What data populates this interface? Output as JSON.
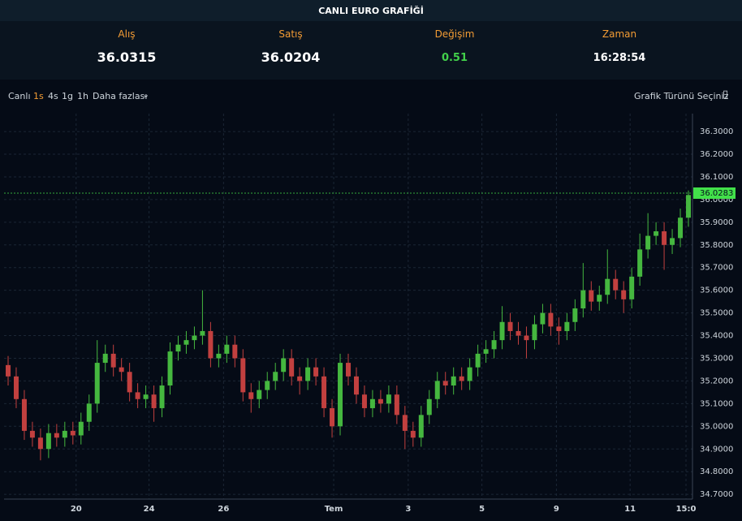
{
  "header": {
    "title": "CANLI EURO GRAFİĞİ",
    "stats": [
      {
        "label": "Alış",
        "value": "36.0315"
      },
      {
        "label": "Satış",
        "value": "36.0204"
      },
      {
        "label": "Değişim",
        "value": "0.51"
      },
      {
        "label": "Zaman",
        "value": "16:28:54"
      }
    ]
  },
  "toolbar": {
    "live": "Canlı",
    "intervals": [
      "1s",
      "4s",
      "1g",
      "1h"
    ],
    "more": "Daha fazlası",
    "chart_type": "Grafik Türünü Seçiniz"
  },
  "chart_data": {
    "type": "candlestick",
    "up_color": "#45b73f",
    "down_color": "#c2403f",
    "grid": true,
    "last_price": 36.0283,
    "last_price_color": "#42e04a",
    "open": [
      35.27,
      35.22,
      35.12,
      34.98,
      34.95,
      34.9,
      34.97,
      34.95,
      34.98,
      34.96,
      35.02,
      35.1,
      35.28,
      35.32,
      35.26,
      35.24,
      35.15,
      35.12,
      35.14,
      35.08,
      35.18,
      35.33,
      35.36,
      35.38,
      35.4,
      35.42,
      35.3,
      35.32,
      35.36,
      35.3,
      35.15,
      35.12,
      35.16,
      35.2,
      35.24,
      35.3,
      35.22,
      35.2,
      35.26,
      35.22,
      35.08,
      35.0,
      35.28,
      35.22,
      35.14,
      35.08,
      35.12,
      35.1,
      35.14,
      35.05,
      34.98,
      34.95,
      35.05,
      35.12,
      35.2,
      35.18,
      35.22,
      35.2,
      35.26,
      35.32,
      35.34,
      35.38,
      35.46,
      35.42,
      35.4,
      35.38,
      35.45,
      35.5,
      35.44,
      35.42,
      35.46,
      35.52,
      35.6,
      35.55,
      35.58,
      35.65,
      35.6,
      35.56,
      35.66,
      35.78,
      35.84,
      35.86,
      35.8,
      35.83,
      35.92
    ],
    "high": [
      35.31,
      35.26,
      35.16,
      35.02,
      34.99,
      35.01,
      35.01,
      35.02,
      35.02,
      35.06,
      35.14,
      35.38,
      35.36,
      35.36,
      35.3,
      35.28,
      35.19,
      35.18,
      35.18,
      35.22,
      35.37,
      35.4,
      35.42,
      35.44,
      35.6,
      35.46,
      35.36,
      35.4,
      35.4,
      35.34,
      35.19,
      35.2,
      35.24,
      35.28,
      35.34,
      35.34,
      35.26,
      35.3,
      35.3,
      35.26,
      35.12,
      35.32,
      35.32,
      35.26,
      35.18,
      35.16,
      35.16,
      35.18,
      35.18,
      35.09,
      35.02,
      35.09,
      35.16,
      35.24,
      35.24,
      35.26,
      35.26,
      35.3,
      35.36,
      35.38,
      35.42,
      35.53,
      35.5,
      35.46,
      35.44,
      35.49,
      35.54,
      35.54,
      35.48,
      35.5,
      35.56,
      35.72,
      35.64,
      35.62,
      35.78,
      35.69,
      35.64,
      35.7,
      35.85,
      35.94,
      35.9,
      35.9,
      35.87,
      35.96,
      36.04
    ],
    "low": [
      35.18,
      35.08,
      34.94,
      34.91,
      34.85,
      34.86,
      34.91,
      34.91,
      34.92,
      34.92,
      34.98,
      35.06,
      35.24,
      35.22,
      35.2,
      35.11,
      35.08,
      35.08,
      35.02,
      35.04,
      35.14,
      35.29,
      35.32,
      35.34,
      35.36,
      35.26,
      35.26,
      35.28,
      35.26,
      35.11,
      35.06,
      35.08,
      35.12,
      35.16,
      35.2,
      35.18,
      35.14,
      35.16,
      35.18,
      35.04,
      34.95,
      34.96,
      35.18,
      35.1,
      35.04,
      35.04,
      35.06,
      35.06,
      35.01,
      34.9,
      34.91,
      34.91,
      35.01,
      35.08,
      35.14,
      35.14,
      35.16,
      35.16,
      35.22,
      35.28,
      35.3,
      35.34,
      35.38,
      35.36,
      35.3,
      35.34,
      35.41,
      35.4,
      35.36,
      35.38,
      35.42,
      35.48,
      35.51,
      35.51,
      35.54,
      35.56,
      35.5,
      35.52,
      35.62,
      35.74,
      35.8,
      35.69,
      35.76,
      35.79,
      35.88
    ],
    "close": [
      35.22,
      35.12,
      34.98,
      34.95,
      34.9,
      34.97,
      34.95,
      34.98,
      34.96,
      35.02,
      35.1,
      35.28,
      35.32,
      35.26,
      35.24,
      35.15,
      35.12,
      35.14,
      35.08,
      35.18,
      35.33,
      35.36,
      35.38,
      35.4,
      35.42,
      35.3,
      35.32,
      35.36,
      35.3,
      35.15,
      35.12,
      35.16,
      35.2,
      35.24,
      35.3,
      35.22,
      35.2,
      35.26,
      35.22,
      35.08,
      35.0,
      35.28,
      35.22,
      35.14,
      35.08,
      35.12,
      35.1,
      35.14,
      35.05,
      34.98,
      34.95,
      35.05,
      35.12,
      35.2,
      35.18,
      35.22,
      35.2,
      35.26,
      35.32,
      35.34,
      35.38,
      35.46,
      35.42,
      35.4,
      35.38,
      35.45,
      35.5,
      35.44,
      35.42,
      35.46,
      35.52,
      35.6,
      35.55,
      35.58,
      35.65,
      35.6,
      35.56,
      35.66,
      35.78,
      35.84,
      35.86,
      35.8,
      35.83,
      35.92,
      36.02
    ],
    "xlim": [
      0,
      85
    ],
    "xticks": [
      {
        "value": 8.9,
        "label": "20"
      },
      {
        "value": 17.9,
        "label": "24"
      },
      {
        "value": 27.1,
        "label": "26"
      },
      {
        "value": 40.7,
        "label": "Tem"
      },
      {
        "value": 49.9,
        "label": "3"
      },
      {
        "value": 59.0,
        "label": "5"
      },
      {
        "value": 68.2,
        "label": "9"
      },
      {
        "value": 77.3,
        "label": "11"
      },
      {
        "value": 84.2,
        "label": "15:0"
      }
    ],
    "ylim": [
      34.679,
      36.379
    ],
    "yticks": [
      {
        "value": 34.7,
        "label": "34.7000"
      },
      {
        "value": 34.8,
        "label": "34.8000"
      },
      {
        "value": 34.9,
        "label": "34.9000"
      },
      {
        "value": 35.0,
        "label": "35.0000"
      },
      {
        "value": 35.1,
        "label": "35.1000"
      },
      {
        "value": 35.2,
        "label": "35.2000"
      },
      {
        "value": 35.3,
        "label": "35.3000"
      },
      {
        "value": 35.4,
        "label": "35.4000"
      },
      {
        "value": 35.5,
        "label": "35.5000"
      },
      {
        "value": 35.6,
        "label": "35.6000"
      },
      {
        "value": 35.7,
        "label": "35.7000"
      },
      {
        "value": 35.8,
        "label": "35.8000"
      },
      {
        "value": 35.9,
        "label": "35.9000"
      },
      {
        "value": 36.0,
        "label": "36.0000"
      },
      {
        "value": 36.1,
        "label": "36.1000"
      },
      {
        "value": 36.2,
        "label": "36.2000"
      },
      {
        "value": 36.3,
        "label": "36.3000"
      }
    ]
  }
}
